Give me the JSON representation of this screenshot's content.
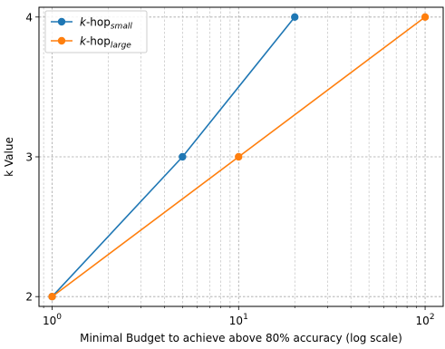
{
  "chart_data": {
    "type": "line",
    "x_scale": "log",
    "xlim": [
      0.85,
      125
    ],
    "ylim": [
      1.93,
      4.07
    ],
    "grid": true,
    "grid_which": "both",
    "legend_position": "top-left",
    "xlabel": "Minimal Budget to achieve above 80% accuracy (log scale)",
    "ylabel": "k Value",
    "x_ticks": [
      {
        "value": 1,
        "mantissa": "10",
        "exponent": "0"
      },
      {
        "value": 10,
        "mantissa": "10",
        "exponent": "1"
      },
      {
        "value": 100,
        "mantissa": "10",
        "exponent": "2"
      }
    ],
    "y_ticks": [
      {
        "value": 2,
        "label": "2"
      },
      {
        "value": 3,
        "label": "3"
      },
      {
        "value": 4,
        "label": "4"
      }
    ],
    "series": [
      {
        "name_main": "k",
        "name_rest": "-hop",
        "name_sub": "small",
        "color": "#1f77b4",
        "x": [
          1,
          5,
          20
        ],
        "y": [
          2,
          3,
          4
        ]
      },
      {
        "name_main": "k",
        "name_rest": "-hop",
        "name_sub": "large",
        "color": "#ff7f0e",
        "x": [
          1,
          10,
          100
        ],
        "y": [
          2,
          3,
          4
        ]
      }
    ]
  }
}
